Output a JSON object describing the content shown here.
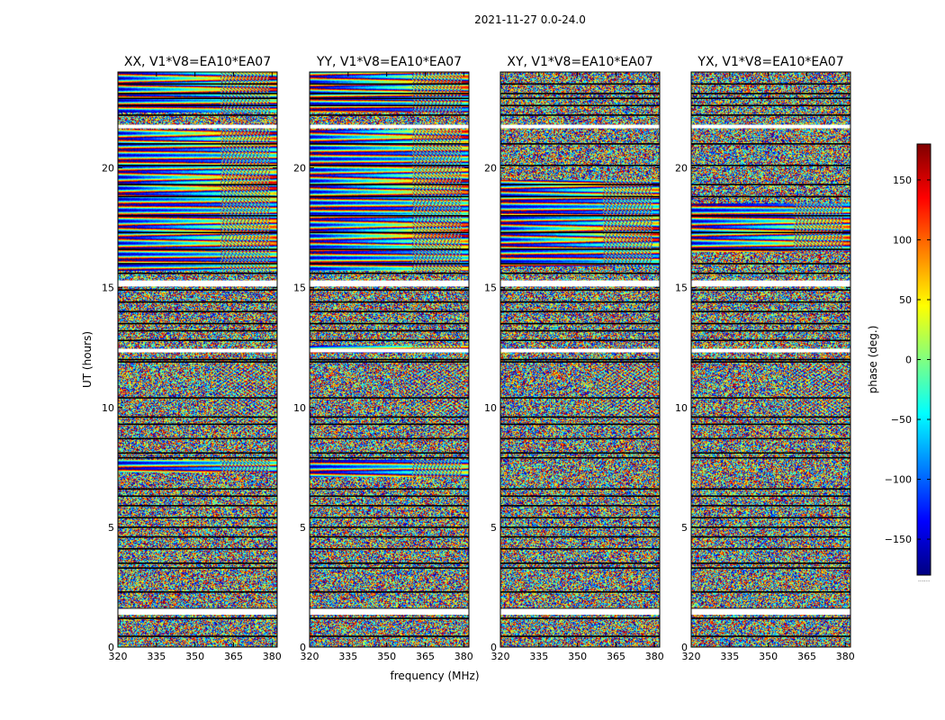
{
  "figure": {
    "suptitle": "2021-11-27 0.0-24.0"
  },
  "colormap": {
    "name": "jet",
    "stops": [
      "#000080",
      "#0000ff",
      "#0080ff",
      "#00ffff",
      "#80ff80",
      "#ffff00",
      "#ff8000",
      "#ff0000",
      "#800000"
    ]
  },
  "chart_data": [
    {
      "type": "heatmap",
      "title": "XX, V1*V8=EA10*EA07",
      "xlabel": "",
      "ylabel": "UT (hours)",
      "xlim": [
        320,
        382
      ],
      "ylim": [
        0,
        24
      ],
      "xticks": [
        320,
        335,
        350,
        365,
        380
      ],
      "yticks": [
        0,
        5,
        10,
        15,
        20
      ],
      "coherent_hours": [
        [
          7.3,
          7.8
        ],
        [
          15.7,
          21.6
        ],
        [
          22.3,
          24
        ]
      ],
      "value_range": [
        -180,
        180
      ]
    },
    {
      "type": "heatmap",
      "title": "YY, V1*V8=EA10*EA07",
      "xlabel": "frequency (MHz)",
      "ylabel": "",
      "xlim": [
        320,
        382
      ],
      "ylim": [
        0,
        24
      ],
      "xticks": [
        320,
        335,
        350,
        365,
        380
      ],
      "yticks": [
        0,
        5,
        10,
        15,
        20
      ],
      "coherent_hours": [
        [
          7.1,
          7.8
        ],
        [
          12.3,
          12.6
        ],
        [
          15.7,
          21.6
        ],
        [
          22.3,
          24
        ]
      ],
      "value_range": [
        -180,
        180
      ]
    },
    {
      "type": "heatmap",
      "title": "XY, V1*V8=EA10*EA07",
      "xlabel": "",
      "ylabel": "",
      "xlim": [
        320,
        382
      ],
      "ylim": [
        0,
        24
      ],
      "xticks": [
        320,
        335,
        350,
        365,
        380
      ],
      "yticks": [
        0,
        5,
        10,
        15,
        20
      ],
      "coherent_hours": [
        [
          15.9,
          19.5
        ]
      ],
      "value_range": [
        -180,
        180
      ]
    },
    {
      "type": "heatmap",
      "title": "YX, V1*V8=EA10*EA07",
      "xlabel": "",
      "ylabel": "",
      "xlim": [
        320,
        382
      ],
      "ylim": [
        0,
        24
      ],
      "xticks": [
        320,
        335,
        350,
        365,
        380
      ],
      "yticks": [
        0,
        5,
        10,
        15,
        20
      ],
      "coherent_hours": [
        [
          16.5,
          18.5
        ]
      ],
      "value_range": [
        -180,
        180
      ]
    }
  ],
  "colorbar": {
    "label": "phase (deg.)",
    "vmin": -180,
    "vmax": 180,
    "ticks": [
      -150,
      -100,
      -50,
      0,
      50,
      100,
      150
    ],
    "tick_labels": [
      "−150",
      "−100",
      "−50",
      "0",
      "50",
      "100",
      "150"
    ],
    "footer": "......"
  }
}
